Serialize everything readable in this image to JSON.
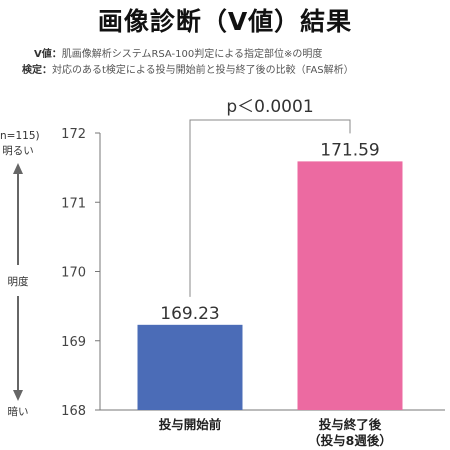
{
  "header": {
    "title": "画像診断（V値）結果",
    "note1_key": "V値：",
    "note1_text": "肌画像解析システムRSA-100判定による指定部位※の明度",
    "note2_key": "検定：",
    "note2_text": "対応のあるt検定による投与開始前と投与終了後の比較（FAS解析）"
  },
  "colors": {
    "before": "#4b6cb7",
    "after": "#ec6aa1",
    "axis": "#777777",
    "bracket": "#888888"
  },
  "chart_data": {
    "type": "bar",
    "categories": [
      "投与開始前",
      "投与終了後\n（投与8週後）"
    ],
    "values": [
      169.23,
      171.59
    ],
    "data_labels": [
      "169.23",
      "171.59"
    ],
    "ylim": [
      168,
      172
    ],
    "yticks": [
      "168",
      "169",
      "170",
      "171",
      "172"
    ],
    "significance": "p＜0.0001",
    "n_label": "n=115)",
    "ylabel_top": "明るい",
    "ylabel_mid": "明度",
    "ylabel_bottom": "暗い",
    "grid": false
  }
}
